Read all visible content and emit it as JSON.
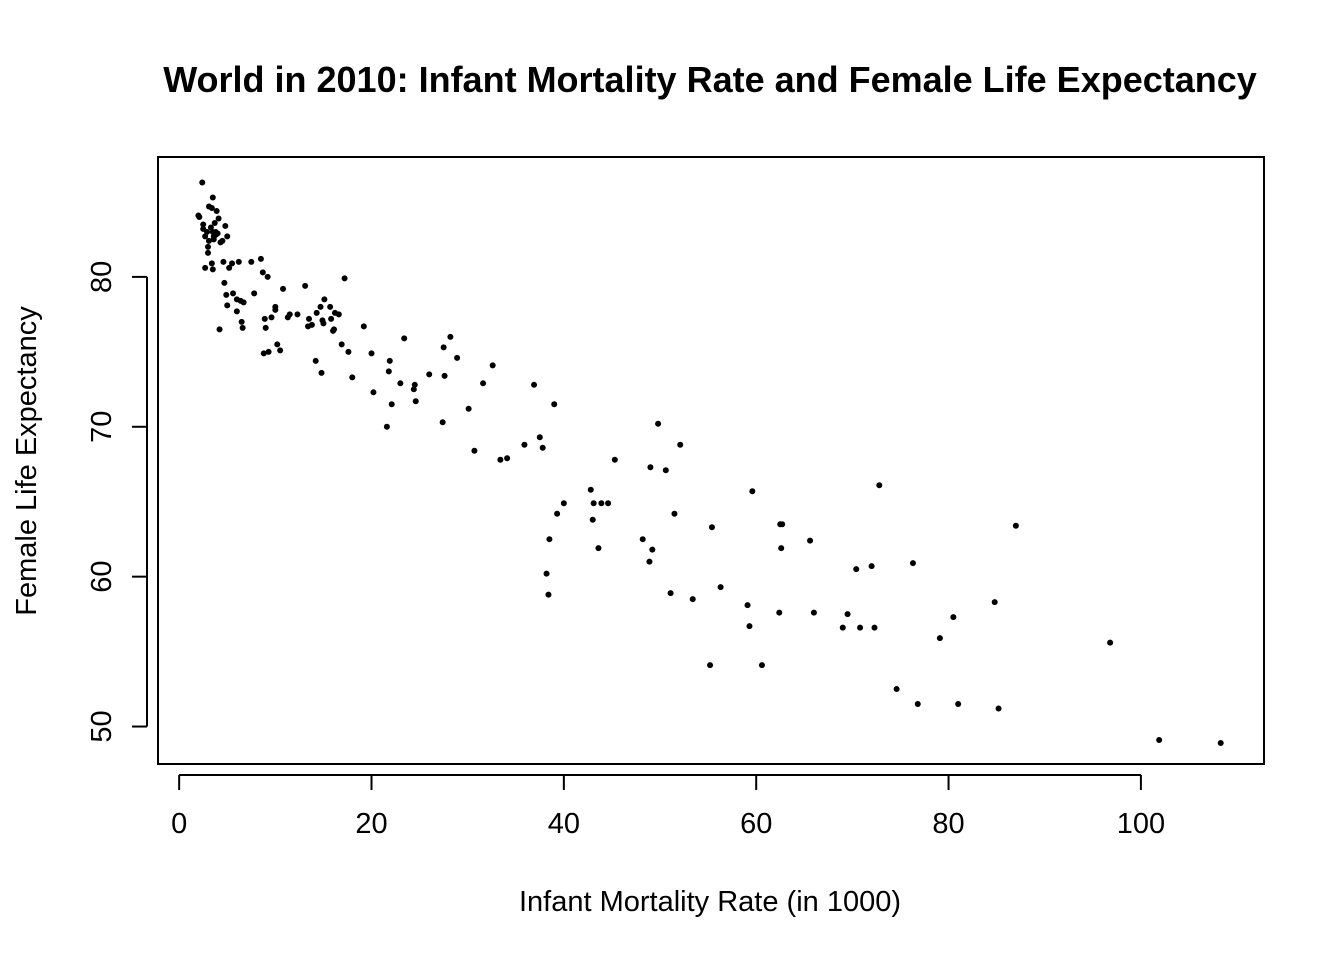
{
  "chart_data": {
    "type": "scatter",
    "title": "World in 2010: Infant Mortality Rate and Female Life Expectancy",
    "xlabel": "Infant Mortality Rate (in 1000)",
    "ylabel": "Female Life Expectancy",
    "xlim": [
      -2.2,
      112.8
    ],
    "ylim": [
      47.5,
      88
    ],
    "xticks": [
      0,
      20,
      40,
      60,
      80,
      100
    ],
    "yticks": [
      50,
      60,
      70,
      80
    ],
    "grid": false,
    "legend": "none",
    "point_color": "#000000",
    "points": [
      [
        2.0,
        84.1
      ],
      [
        2.1,
        84.0
      ],
      [
        2.4,
        86.3
      ],
      [
        2.5,
        83.5
      ],
      [
        2.5,
        83.2
      ],
      [
        2.7,
        82.7
      ],
      [
        2.7,
        80.6
      ],
      [
        2.9,
        83.0
      ],
      [
        3.0,
        81.6
      ],
      [
        3.0,
        82.0
      ],
      [
        3.1,
        84.7
      ],
      [
        3.1,
        82.4
      ],
      [
        3.3,
        83.3
      ],
      [
        3.4,
        84.6
      ],
      [
        3.4,
        80.9
      ],
      [
        3.5,
        85.3
      ],
      [
        3.5,
        83.0
      ],
      [
        3.5,
        80.5
      ],
      [
        3.6,
        82.7
      ],
      [
        3.6,
        82.5
      ],
      [
        3.7,
        83.6
      ],
      [
        3.8,
        83.0
      ],
      [
        3.8,
        82.8
      ],
      [
        3.9,
        84.4
      ],
      [
        4.0,
        82.9
      ],
      [
        4.1,
        83.9
      ],
      [
        4.2,
        76.5
      ],
      [
        4.3,
        82.3
      ],
      [
        4.5,
        82.4
      ],
      [
        4.6,
        81.0
      ],
      [
        4.7,
        79.6
      ],
      [
        4.8,
        83.4
      ],
      [
        4.9,
        78.8
      ],
      [
        5.0,
        82.7
      ],
      [
        5.0,
        78.1
      ],
      [
        5.2,
        80.6
      ],
      [
        5.5,
        80.9
      ],
      [
        5.6,
        78.9
      ],
      [
        6.0,
        78.5
      ],
      [
        6.0,
        77.7
      ],
      [
        6.2,
        81.0
      ],
      [
        6.4,
        78.4
      ],
      [
        6.5,
        77.0
      ],
      [
        6.6,
        76.6
      ],
      [
        6.7,
        78.3
      ],
      [
        7.5,
        81.0
      ],
      [
        7.8,
        78.9
      ],
      [
        8.5,
        81.2
      ],
      [
        8.7,
        80.3
      ],
      [
        8.8,
        74.9
      ],
      [
        8.9,
        77.2
      ],
      [
        9.0,
        76.6
      ],
      [
        9.2,
        80.0
      ],
      [
        9.3,
        75.0
      ],
      [
        9.6,
        77.3
      ],
      [
        10.0,
        78.0
      ],
      [
        10.0,
        77.8
      ],
      [
        10.2,
        75.5
      ],
      [
        10.5,
        75.1
      ],
      [
        10.8,
        79.2
      ],
      [
        11.3,
        77.3
      ],
      [
        11.5,
        77.5
      ],
      [
        12.3,
        77.5
      ],
      [
        13.1,
        79.4
      ],
      [
        13.4,
        76.7
      ],
      [
        13.5,
        77.2
      ],
      [
        13.8,
        76.8
      ],
      [
        14.2,
        74.4
      ],
      [
        14.3,
        77.6
      ],
      [
        14.7,
        78.0
      ],
      [
        14.8,
        73.6
      ],
      [
        14.9,
        77.1
      ],
      [
        15.0,
        76.9
      ],
      [
        15.1,
        78.5
      ],
      [
        15.7,
        78.0
      ],
      [
        15.8,
        77.2
      ],
      [
        16.0,
        76.4
      ],
      [
        16.1,
        76.5
      ],
      [
        16.2,
        77.6
      ],
      [
        16.6,
        77.5
      ],
      [
        16.9,
        75.5
      ],
      [
        17.2,
        79.9
      ],
      [
        17.6,
        75.0
      ],
      [
        18.0,
        73.3
      ],
      [
        19.2,
        76.7
      ],
      [
        20.0,
        74.9
      ],
      [
        20.2,
        72.3
      ],
      [
        21.6,
        70.0
      ],
      [
        21.8,
        73.7
      ],
      [
        21.9,
        74.4
      ],
      [
        22.1,
        71.5
      ],
      [
        23.0,
        72.9
      ],
      [
        23.4,
        75.9
      ],
      [
        24.4,
        72.5
      ],
      [
        24.5,
        72.8
      ],
      [
        24.6,
        71.7
      ],
      [
        26.0,
        73.5
      ],
      [
        27.4,
        70.3
      ],
      [
        27.5,
        75.3
      ],
      [
        27.6,
        73.4
      ],
      [
        28.2,
        76.0
      ],
      [
        28.9,
        74.6
      ],
      [
        30.1,
        71.2
      ],
      [
        30.7,
        68.4
      ],
      [
        31.6,
        72.9
      ],
      [
        32.6,
        74.1
      ],
      [
        33.4,
        67.8
      ],
      [
        34.1,
        67.9
      ],
      [
        35.9,
        68.8
      ],
      [
        36.9,
        72.8
      ],
      [
        37.5,
        69.3
      ],
      [
        37.8,
        68.6
      ],
      [
        38.2,
        60.2
      ],
      [
        38.4,
        58.8
      ],
      [
        38.5,
        62.5
      ],
      [
        39.0,
        71.5
      ],
      [
        39.3,
        64.2
      ],
      [
        40.0,
        64.9
      ],
      [
        42.8,
        65.8
      ],
      [
        43.0,
        63.8
      ],
      [
        43.1,
        64.9
      ],
      [
        43.6,
        61.9
      ],
      [
        43.9,
        64.9
      ],
      [
        44.6,
        64.9
      ],
      [
        45.3,
        67.8
      ],
      [
        48.2,
        62.5
      ],
      [
        48.9,
        61.0
      ],
      [
        49.0,
        67.3
      ],
      [
        49.2,
        61.8
      ],
      [
        49.8,
        70.2
      ],
      [
        50.6,
        67.1
      ],
      [
        51.1,
        58.9
      ],
      [
        51.5,
        64.2
      ],
      [
        52.1,
        68.8
      ],
      [
        53.4,
        58.5
      ],
      [
        55.2,
        54.1
      ],
      [
        55.4,
        63.3
      ],
      [
        56.3,
        59.3
      ],
      [
        59.1,
        58.1
      ],
      [
        59.3,
        56.7
      ],
      [
        59.6,
        65.7
      ],
      [
        60.6,
        54.1
      ],
      [
        62.4,
        57.6
      ],
      [
        62.5,
        63.5
      ],
      [
        62.6,
        61.9
      ],
      [
        62.7,
        63.5
      ],
      [
        65.6,
        62.4
      ],
      [
        66.0,
        57.6
      ],
      [
        69.0,
        56.6
      ],
      [
        69.5,
        57.5
      ],
      [
        70.4,
        60.5
      ],
      [
        70.8,
        56.6
      ],
      [
        72.0,
        60.7
      ],
      [
        72.3,
        56.6
      ],
      [
        72.8,
        66.1
      ],
      [
        74.6,
        52.5
      ],
      [
        76.3,
        60.9
      ],
      [
        76.8,
        51.5
      ],
      [
        79.1,
        55.9
      ],
      [
        80.5,
        57.3
      ],
      [
        81.0,
        51.5
      ],
      [
        84.8,
        58.3
      ],
      [
        85.2,
        51.2
      ],
      [
        87.0,
        63.4
      ],
      [
        96.8,
        55.6
      ],
      [
        101.9,
        49.1
      ],
      [
        108.3,
        48.9
      ]
    ]
  }
}
